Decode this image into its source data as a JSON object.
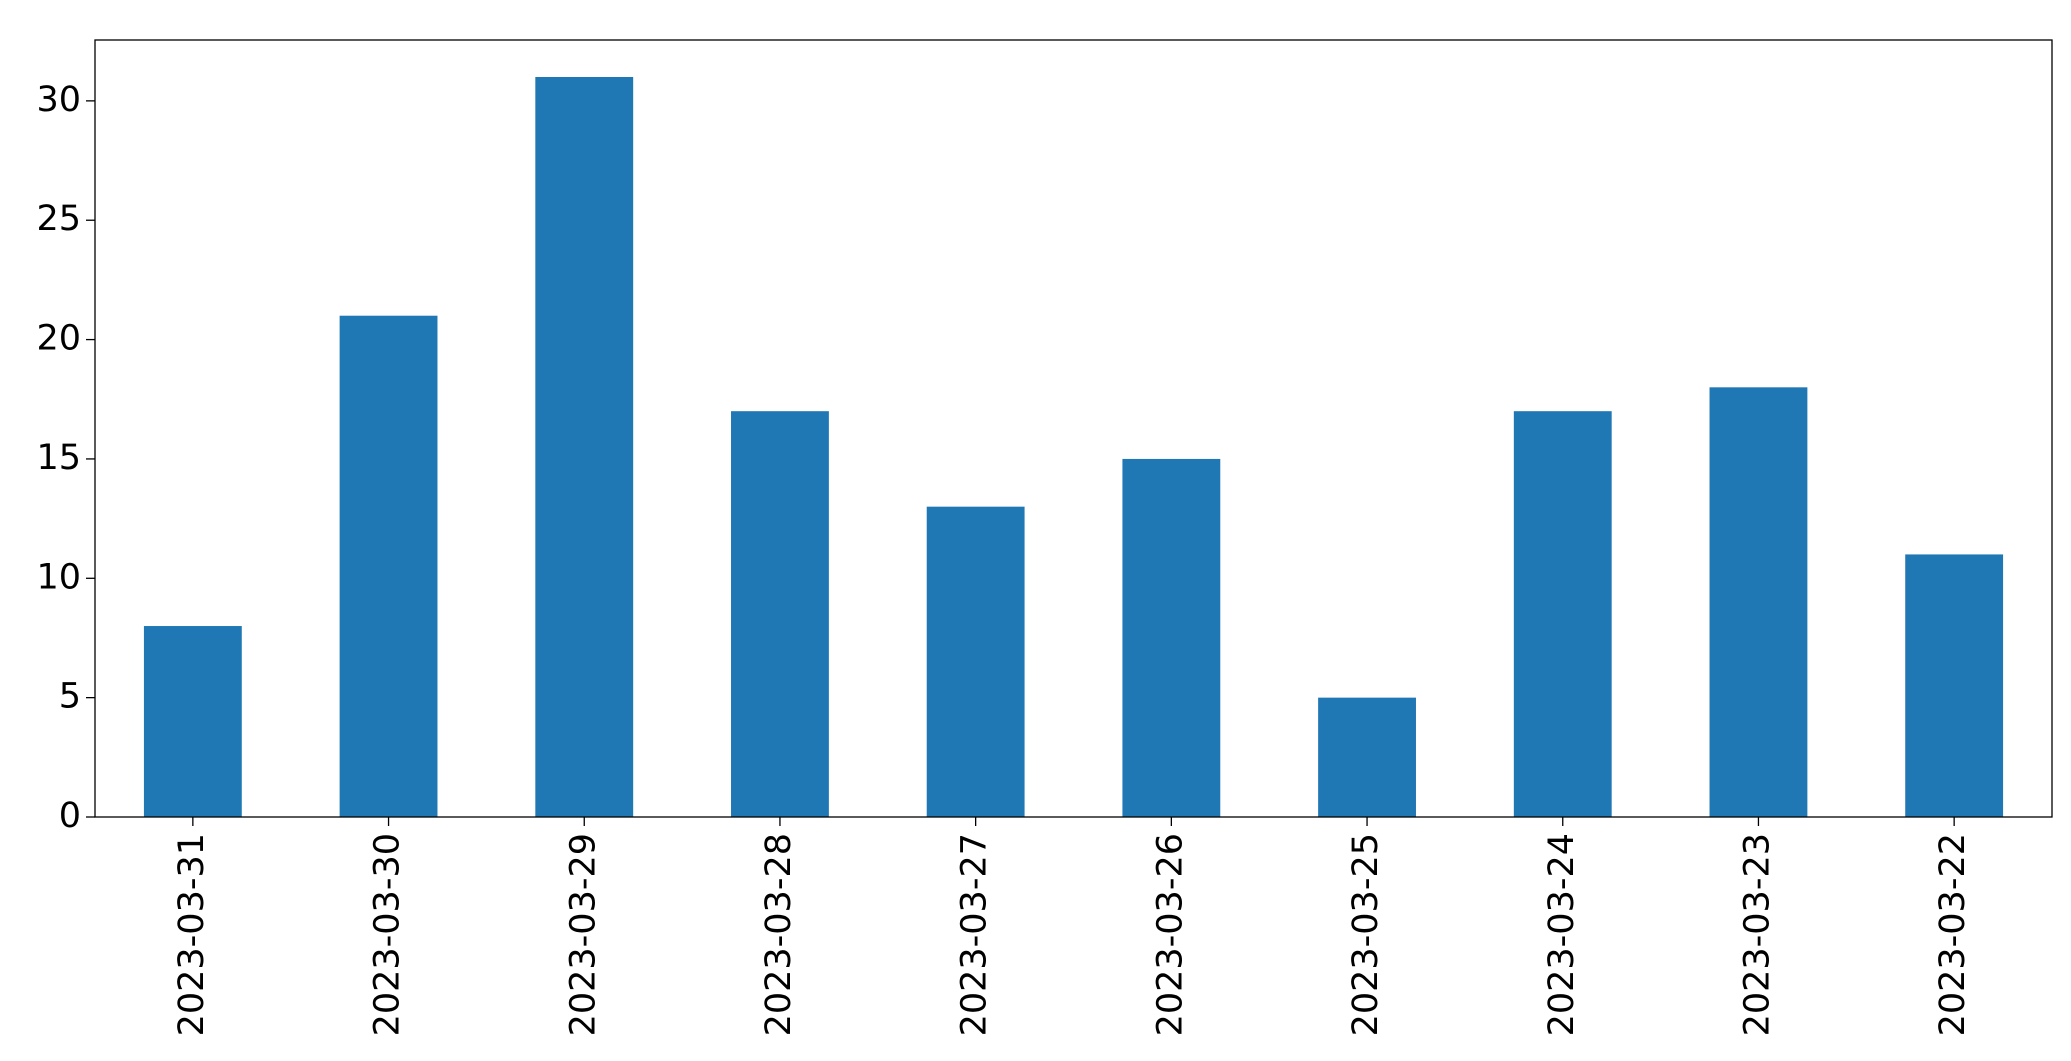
{
  "chart_data": {
    "type": "bar",
    "categories": [
      "2023-03-31",
      "2023-03-30",
      "2023-03-29",
      "2023-03-28",
      "2023-03-27",
      "2023-03-26",
      "2023-03-25",
      "2023-03-24",
      "2023-03-23",
      "2023-03-22"
    ],
    "values": [
      8,
      21,
      31,
      17,
      13,
      15,
      5,
      17,
      18,
      11
    ],
    "color": "#1f77b4",
    "ylim": [
      0,
      32.55
    ],
    "yticks": [
      0,
      5,
      10,
      15,
      20,
      25,
      30
    ],
    "grid": false
  }
}
